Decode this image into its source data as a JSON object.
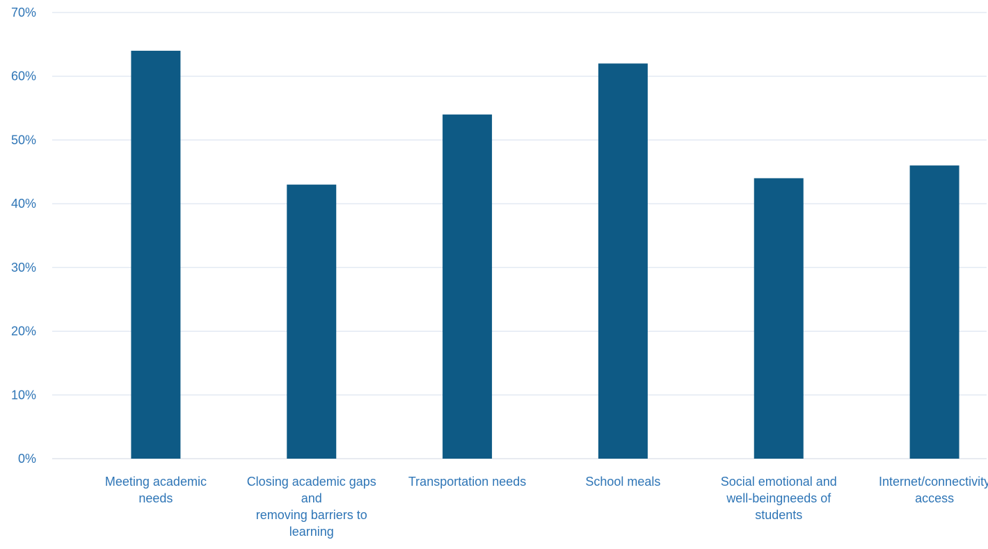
{
  "chart_data": {
    "type": "bar",
    "categories": [
      [
        "Meeting academic",
        "needs"
      ],
      [
        "Closing academic gaps",
        "and",
        "removing barriers to",
        "learning"
      ],
      [
        "Transportation needs"
      ],
      [
        "School meals"
      ],
      [
        "Social emotional and",
        "well-beingneeds of",
        "students"
      ],
      [
        "Internet/connectivity",
        "access"
      ]
    ],
    "values": [
      64,
      43,
      54,
      62,
      44,
      46
    ],
    "y_ticks": [
      "0%",
      "10%",
      "20%",
      "30%",
      "40%",
      "50%",
      "60%",
      "70%"
    ],
    "ylim": [
      0,
      70
    ],
    "grid": true,
    "legend": "none"
  },
  "colors": {
    "bar": "#0e5a85",
    "text": "#2e75b6",
    "grid": "#d5dfee",
    "axis": "#d0d7e0"
  }
}
